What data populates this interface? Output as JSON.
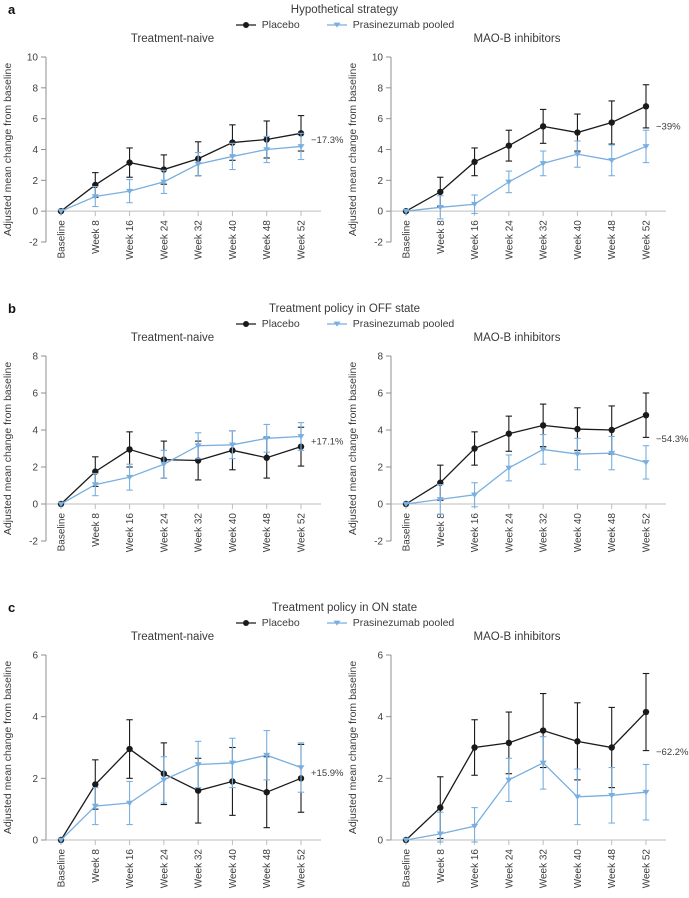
{
  "figure": {
    "ylabel": "Adjusted mean change from baseline",
    "categories": [
      "Baseline",
      "Week 8",
      "Week 16",
      "Week 24",
      "Week 32",
      "Week 40",
      "Week 48",
      "Week 52"
    ]
  },
  "colors": {
    "placebo": "#1a1a1a",
    "prasinezumab": "#79afdf",
    "axis": "#8f8f8f",
    "zero_line": "#bdbdbd",
    "text": "#3d3d3d",
    "annotation_text": "#2b2b2b"
  },
  "legend": {
    "placebo": "Placebo",
    "prasinezumab": "Prasinezumab pooled"
  },
  "panels": [
    {
      "label": "a",
      "title": "Hypothetical strategy"
    },
    {
      "label": "b",
      "title": "Treatment policy in OFF state"
    },
    {
      "label": "c",
      "title": "Treatment policy in ON state"
    }
  ],
  "chart_data": [
    {
      "panel": "a",
      "panel_title": "Hypothetical strategy",
      "subplot": "Treatment-naive",
      "type": "line",
      "categories": [
        "Baseline",
        "Week 8",
        "Week 16",
        "Week 24",
        "Week 32",
        "Week 40",
        "Week 48",
        "Week 52"
      ],
      "ylabel": "Adjusted mean change from baseline",
      "ylim": [
        -2,
        10
      ],
      "yticks": [
        10,
        8,
        6,
        4,
        2,
        0,
        -2
      ],
      "series": [
        {
          "name": "Placebo",
          "marker": "circle",
          "color_key": "placebo",
          "values": [
            0,
            1.7,
            3.15,
            2.7,
            3.4,
            4.45,
            4.65,
            5.05
          ],
          "error": [
            0,
            0.8,
            0.95,
            0.95,
            1.1,
            1.15,
            1.2,
            1.15
          ]
        },
        {
          "name": "Prasinezumab pooled",
          "marker": "triangle-down",
          "color_key": "prasinezumab",
          "values": [
            0,
            0.95,
            1.3,
            1.9,
            3.05,
            3.55,
            4.0,
            4.2
          ],
          "error": [
            0,
            0.65,
            0.75,
            0.75,
            0.75,
            0.85,
            0.85,
            0.85
          ]
        }
      ],
      "annotation": {
        "text": "−17.3%"
      }
    },
    {
      "panel": "a",
      "panel_title": "Hypothetical strategy",
      "subplot": "MAO-B inhibitors",
      "type": "line",
      "categories": [
        "Baseline",
        "Week 8",
        "Week 16",
        "Week 24",
        "Week 32",
        "Week 40",
        "Week 48",
        "Week 52"
      ],
      "ylabel": "Adjusted mean change from baseline",
      "ylim": [
        -2,
        10
      ],
      "yticks": [
        10,
        8,
        6,
        4,
        2,
        0,
        -2
      ],
      "series": [
        {
          "name": "Placebo",
          "marker": "circle",
          "color_key": "placebo",
          "values": [
            0,
            1.25,
            3.2,
            4.25,
            5.5,
            5.1,
            5.75,
            6.8
          ],
          "error": [
            0,
            0.95,
            0.9,
            1.0,
            1.1,
            1.2,
            1.4,
            1.4
          ]
        },
        {
          "name": "Prasinezumab pooled",
          "marker": "triangle-down",
          "color_key": "prasinezumab",
          "values": [
            0,
            0.25,
            0.45,
            1.9,
            3.1,
            3.7,
            3.3,
            4.2
          ],
          "error": [
            0,
            0.75,
            0.6,
            0.7,
            0.8,
            0.85,
            1.0,
            1.05
          ]
        }
      ],
      "annotation": {
        "text": "−39%"
      }
    },
    {
      "panel": "b",
      "panel_title": "Treatment policy in OFF state",
      "subplot": "Treatment-naive",
      "type": "line",
      "categories": [
        "Baseline",
        "Week 8",
        "Week 16",
        "Week 24",
        "Week 32",
        "Week 40",
        "Week 48",
        "Week 52"
      ],
      "ylabel": "Adjusted mean change from baseline",
      "ylim": [
        -2,
        8
      ],
      "yticks": [
        8,
        6,
        4,
        2,
        0,
        -2
      ],
      "series": [
        {
          "name": "Placebo",
          "marker": "circle",
          "color_key": "placebo",
          "values": [
            0,
            1.75,
            2.95,
            2.4,
            2.35,
            2.9,
            2.5,
            3.1
          ],
          "error": [
            0,
            0.8,
            0.95,
            1.0,
            1.05,
            1.05,
            1.1,
            1.05
          ]
        },
        {
          "name": "Prasinezumab pooled",
          "marker": "triangle-down",
          "color_key": "prasinezumab",
          "values": [
            0,
            1.05,
            1.45,
            2.15,
            3.15,
            3.2,
            3.55,
            3.65
          ],
          "error": [
            0,
            0.6,
            0.7,
            0.75,
            0.7,
            0.75,
            0.75,
            0.75
          ]
        }
      ],
      "annotation": {
        "text": "+17.1%"
      }
    },
    {
      "panel": "b",
      "panel_title": "Treatment policy in OFF state",
      "subplot": "MAO-B inhibitors",
      "type": "line",
      "categories": [
        "Baseline",
        "Week 8",
        "Week 16",
        "Week 24",
        "Week 32",
        "Week 40",
        "Week 48",
        "Week 52"
      ],
      "ylabel": "Adjusted mean change from baseline",
      "ylim": [
        -2,
        8
      ],
      "yticks": [
        8,
        6,
        4,
        2,
        0,
        -2
      ],
      "series": [
        {
          "name": "Placebo",
          "marker": "circle",
          "color_key": "placebo",
          "values": [
            0,
            1.15,
            3.0,
            3.8,
            4.25,
            4.05,
            4.0,
            4.8
          ],
          "error": [
            0,
            0.95,
            0.9,
            0.95,
            1.15,
            1.15,
            1.3,
            1.2
          ]
        },
        {
          "name": "Prasinezumab pooled",
          "marker": "triangle-down",
          "color_key": "prasinezumab",
          "values": [
            0,
            0.25,
            0.5,
            1.95,
            2.95,
            2.7,
            2.75,
            2.25
          ],
          "error": [
            0,
            0.8,
            0.65,
            0.7,
            0.8,
            0.85,
            0.9,
            0.9
          ]
        }
      ],
      "annotation": {
        "text": "−54.3%"
      }
    },
    {
      "panel": "c",
      "panel_title": "Treatment policy in ON state",
      "subplot": "Treatment-naive",
      "type": "line",
      "categories": [
        "Baseline",
        "Week 8",
        "Week 16",
        "Week 24",
        "Week 32",
        "Week 40",
        "Week 48",
        "Week 52"
      ],
      "ylabel": "Adjusted mean change from baseline",
      "ylim": [
        0,
        6
      ],
      "yticks": [
        6,
        4,
        2,
        0
      ],
      "series": [
        {
          "name": "Placebo",
          "marker": "circle",
          "color_key": "placebo",
          "values": [
            0,
            1.8,
            2.95,
            2.15,
            1.6,
            1.9,
            1.55,
            2.0
          ],
          "error": [
            0,
            0.8,
            0.95,
            1.0,
            1.05,
            1.1,
            1.15,
            1.1
          ]
        },
        {
          "name": "Prasinezumab pooled",
          "marker": "triangle-down",
          "color_key": "prasinezumab",
          "values": [
            0,
            1.1,
            1.2,
            1.95,
            2.45,
            2.5,
            2.75,
            2.35
          ],
          "error": [
            0,
            0.6,
            0.7,
            0.75,
            0.75,
            0.8,
            0.8,
            0.8
          ]
        }
      ],
      "annotation": {
        "text": "+15.9%"
      }
    },
    {
      "panel": "c",
      "panel_title": "Treatment policy in ON state",
      "subplot": "MAO-B inhibitors",
      "type": "line",
      "categories": [
        "Baseline",
        "Week 8",
        "Week 16",
        "Week 24",
        "Week 32",
        "Week 40",
        "Week 48",
        "Week 52"
      ],
      "ylabel": "Adjusted mean change from baseline",
      "ylim": [
        0,
        6
      ],
      "yticks": [
        6,
        4,
        2,
        0
      ],
      "series": [
        {
          "name": "Placebo",
          "marker": "circle",
          "color_key": "placebo",
          "values": [
            0,
            1.05,
            3.0,
            3.15,
            3.55,
            3.2,
            3.0,
            4.15
          ],
          "error": [
            0,
            1.0,
            0.9,
            1.0,
            1.2,
            1.25,
            1.3,
            1.25
          ]
        },
        {
          "name": "Prasinezumab pooled",
          "marker": "triangle-down",
          "color_key": "prasinezumab",
          "values": [
            0,
            0.2,
            0.45,
            1.95,
            2.5,
            1.4,
            1.45,
            1.55
          ],
          "error": [
            0,
            0.7,
            0.6,
            0.7,
            0.85,
            0.9,
            0.9,
            0.9
          ]
        }
      ],
      "annotation": {
        "text": "−62.2%"
      }
    }
  ]
}
